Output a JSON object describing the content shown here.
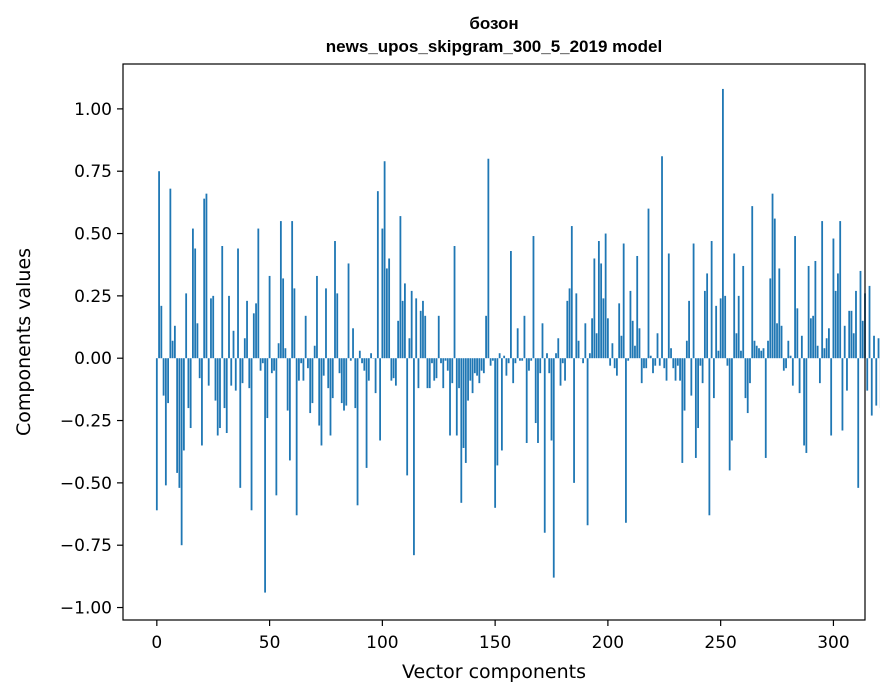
{
  "chart_data": {
    "type": "bar",
    "title_line1": "бозон",
    "title_line2": "news_upos_skipgram_300_5_2019 model",
    "xlabel": "Vector components",
    "ylabel": "Components values",
    "xlim": [
      -15,
      314
    ],
    "ylim": [
      -1.05,
      1.18
    ],
    "xticks": [
      0,
      50,
      100,
      150,
      200,
      250,
      300
    ],
    "xtick_labels": [
      "0",
      "50",
      "100",
      "150",
      "200",
      "250",
      "300"
    ],
    "yticks": [
      -1.0,
      -0.75,
      -0.5,
      -0.25,
      0.0,
      0.25,
      0.5,
      0.75,
      1.0
    ],
    "ytick_labels": [
      "−1.00",
      "−0.75",
      "−0.50",
      "−0.25",
      "0.00",
      "0.25",
      "0.50",
      "0.75",
      "1.00"
    ],
    "bar_color": "#1f77b4",
    "values": [
      -0.61,
      0.75,
      0.21,
      -0.15,
      -0.51,
      -0.18,
      0.68,
      0.07,
      0.13,
      -0.46,
      -0.52,
      -0.75,
      -0.37,
      0.26,
      -0.2,
      -0.28,
      0.52,
      0.44,
      0.14,
      -0.08,
      -0.35,
      0.64,
      0.66,
      -0.11,
      0.24,
      0.25,
      -0.17,
      -0.31,
      -0.28,
      0.45,
      -0.2,
      -0.3,
      0.25,
      -0.11,
      0.11,
      -0.13,
      0.44,
      -0.52,
      -0.1,
      0.08,
      0.23,
      -0.12,
      -0.61,
      0.18,
      0.22,
      0.52,
      -0.05,
      -0.02,
      -0.94,
      -0.24,
      0.33,
      -0.06,
      -0.05,
      -0.55,
      0.06,
      0.55,
      0.32,
      0.04,
      -0.21,
      -0.41,
      0.55,
      0.28,
      -0.63,
      -0.09,
      -0.02,
      -0.09,
      0.17,
      -0.04,
      -0.22,
      -0.18,
      0.05,
      0.33,
      -0.27,
      -0.35,
      -0.07,
      0.28,
      -0.12,
      -0.31,
      -0.16,
      0.47,
      0.26,
      -0.06,
      -0.18,
      -0.21,
      -0.19,
      0.38,
      -0.01,
      0.12,
      -0.2,
      -0.59,
      0.03,
      -0.02,
      -0.05,
      -0.44,
      -0.09,
      0.02,
      0.0,
      -0.14,
      0.67,
      -0.33,
      0.52,
      0.79,
      0.36,
      0.4,
      -0.09,
      -0.08,
      -0.11,
      0.15,
      0.57,
      0.23,
      0.3,
      -0.47,
      0.08,
      0.27,
      -0.79,
      0.24,
      -0.12,
      0.19,
      0.23,
      0.17,
      -0.12,
      -0.12,
      -0.02,
      -0.09,
      -0.08,
      0.17,
      -0.02,
      -0.12,
      -0.01,
      -0.05,
      -0.31,
      -0.1,
      0.45,
      -0.31,
      -0.12,
      -0.58,
      -0.36,
      -0.42,
      -0.17,
      -0.09,
      -0.14,
      -0.06,
      -0.07,
      -0.1,
      -0.05,
      -0.06,
      0.17,
      0.8,
      -0.03,
      -0.01,
      -0.6,
      -0.43,
      0.02,
      -0.37,
      0.01,
      -0.07,
      -0.02,
      0.43,
      -0.1,
      -0.02,
      0.12,
      -0.01,
      -0.01,
      0.17,
      -0.34,
      -0.05,
      -0.01,
      0.49,
      -0.26,
      -0.34,
      -0.06,
      0.14,
      -0.7,
      0.02,
      -0.06,
      -0.33,
      -0.88,
      0.02,
      0.08,
      -0.11,
      -0.02,
      -0.09,
      0.23,
      0.28,
      0.53,
      -0.5,
      0.26,
      0.07,
      0.0,
      -0.02,
      0.14,
      -0.67,
      0.02,
      0.16,
      0.4,
      0.1,
      0.47,
      0.38,
      0.24,
      0.5,
      0.16,
      -0.03,
      0.06,
      -0.04,
      -0.07,
      0.22,
      0.09,
      0.46,
      -0.66,
      -0.01,
      0.27,
      0.15,
      0.05,
      0.41,
      0.12,
      -0.1,
      -0.04,
      -0.04,
      0.6,
      0.01,
      -0.06,
      -0.03,
      0.1,
      -0.03,
      0.81,
      -0.04,
      -0.09,
      0.42,
      0.04,
      -0.04,
      -0.09,
      -0.03,
      -0.09,
      -0.42,
      -0.21,
      0.07,
      0.23,
      -0.15,
      0.46,
      -0.4,
      -0.28,
      -0.03,
      -0.1,
      0.27,
      0.34,
      -0.63,
      0.47,
      -0.16,
      0.21,
      0.03,
      0.24,
      1.08,
      0.25,
      -0.03,
      -0.45,
      -0.33,
      0.42,
      0.1,
      0.25,
      0.03,
      0.37,
      -0.16,
      -0.22,
      -0.1,
      0.61,
      0.07,
      0.05,
      0.04,
      0.03,
      0.04,
      -0.4,
      0.07,
      0.32,
      0.66,
      0.56,
      0.14,
      0.36,
      0.13,
      -0.05,
      -0.04,
      0.07,
      0.01,
      -0.11,
      0.49,
      0.2,
      -0.14,
      0.09,
      -0.35,
      -0.38,
      0.37,
      0.16,
      0.17,
      0.39,
      0.05,
      -0.1,
      0.55,
      0.04,
      0.08,
      0.12,
      -0.31,
      0.48,
      0.27,
      0.34,
      0.55,
      -0.29,
      0.13,
      -0.13,
      0.19,
      0.19,
      0.1,
      0.27,
      -0.52,
      0.35,
      0.15,
      0.26,
      -0.13,
      0.29,
      -0.23,
      0.09,
      -0.19,
      0.08,
      -0.2,
      -0.1,
      0.04
    ]
  }
}
